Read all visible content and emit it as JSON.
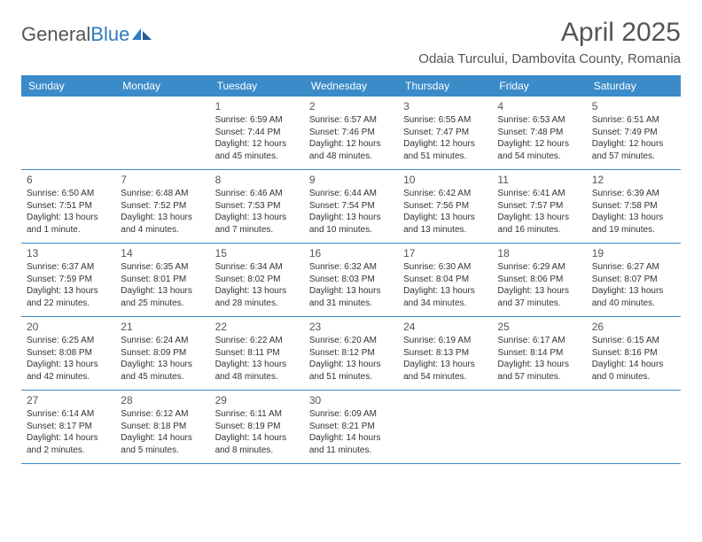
{
  "brand": {
    "part1": "General",
    "part2": "Blue"
  },
  "title": "April 2025",
  "location": "Odaia Turcului, Dambovita County, Romania",
  "colors": {
    "header_bg": "#3b8bc9",
    "header_text": "#ffffff",
    "border": "#3b8bc9",
    "text": "#333333",
    "muted": "#555555",
    "background": "#ffffff",
    "brand_blue": "#2f7bbf"
  },
  "typography": {
    "title_fontsize": 30,
    "location_fontsize": 15,
    "dayheader_fontsize": 12,
    "daynum_fontsize": 12,
    "body_fontsize": 10
  },
  "day_headers": [
    "Sunday",
    "Monday",
    "Tuesday",
    "Wednesday",
    "Thursday",
    "Friday",
    "Saturday"
  ],
  "weeks": [
    [
      null,
      null,
      {
        "n": "1",
        "sr": "Sunrise: 6:59 AM",
        "ss": "Sunset: 7:44 PM",
        "dl": "Daylight: 12 hours and 45 minutes."
      },
      {
        "n": "2",
        "sr": "Sunrise: 6:57 AM",
        "ss": "Sunset: 7:46 PM",
        "dl": "Daylight: 12 hours and 48 minutes."
      },
      {
        "n": "3",
        "sr": "Sunrise: 6:55 AM",
        "ss": "Sunset: 7:47 PM",
        "dl": "Daylight: 12 hours and 51 minutes."
      },
      {
        "n": "4",
        "sr": "Sunrise: 6:53 AM",
        "ss": "Sunset: 7:48 PM",
        "dl": "Daylight: 12 hours and 54 minutes."
      },
      {
        "n": "5",
        "sr": "Sunrise: 6:51 AM",
        "ss": "Sunset: 7:49 PM",
        "dl": "Daylight: 12 hours and 57 minutes."
      }
    ],
    [
      {
        "n": "6",
        "sr": "Sunrise: 6:50 AM",
        "ss": "Sunset: 7:51 PM",
        "dl": "Daylight: 13 hours and 1 minute."
      },
      {
        "n": "7",
        "sr": "Sunrise: 6:48 AM",
        "ss": "Sunset: 7:52 PM",
        "dl": "Daylight: 13 hours and 4 minutes."
      },
      {
        "n": "8",
        "sr": "Sunrise: 6:46 AM",
        "ss": "Sunset: 7:53 PM",
        "dl": "Daylight: 13 hours and 7 minutes."
      },
      {
        "n": "9",
        "sr": "Sunrise: 6:44 AM",
        "ss": "Sunset: 7:54 PM",
        "dl": "Daylight: 13 hours and 10 minutes."
      },
      {
        "n": "10",
        "sr": "Sunrise: 6:42 AM",
        "ss": "Sunset: 7:56 PM",
        "dl": "Daylight: 13 hours and 13 minutes."
      },
      {
        "n": "11",
        "sr": "Sunrise: 6:41 AM",
        "ss": "Sunset: 7:57 PM",
        "dl": "Daylight: 13 hours and 16 minutes."
      },
      {
        "n": "12",
        "sr": "Sunrise: 6:39 AM",
        "ss": "Sunset: 7:58 PM",
        "dl": "Daylight: 13 hours and 19 minutes."
      }
    ],
    [
      {
        "n": "13",
        "sr": "Sunrise: 6:37 AM",
        "ss": "Sunset: 7:59 PM",
        "dl": "Daylight: 13 hours and 22 minutes."
      },
      {
        "n": "14",
        "sr": "Sunrise: 6:35 AM",
        "ss": "Sunset: 8:01 PM",
        "dl": "Daylight: 13 hours and 25 minutes."
      },
      {
        "n": "15",
        "sr": "Sunrise: 6:34 AM",
        "ss": "Sunset: 8:02 PM",
        "dl": "Daylight: 13 hours and 28 minutes."
      },
      {
        "n": "16",
        "sr": "Sunrise: 6:32 AM",
        "ss": "Sunset: 8:03 PM",
        "dl": "Daylight: 13 hours and 31 minutes."
      },
      {
        "n": "17",
        "sr": "Sunrise: 6:30 AM",
        "ss": "Sunset: 8:04 PM",
        "dl": "Daylight: 13 hours and 34 minutes."
      },
      {
        "n": "18",
        "sr": "Sunrise: 6:29 AM",
        "ss": "Sunset: 8:06 PM",
        "dl": "Daylight: 13 hours and 37 minutes."
      },
      {
        "n": "19",
        "sr": "Sunrise: 6:27 AM",
        "ss": "Sunset: 8:07 PM",
        "dl": "Daylight: 13 hours and 40 minutes."
      }
    ],
    [
      {
        "n": "20",
        "sr": "Sunrise: 6:25 AM",
        "ss": "Sunset: 8:08 PM",
        "dl": "Daylight: 13 hours and 42 minutes."
      },
      {
        "n": "21",
        "sr": "Sunrise: 6:24 AM",
        "ss": "Sunset: 8:09 PM",
        "dl": "Daylight: 13 hours and 45 minutes."
      },
      {
        "n": "22",
        "sr": "Sunrise: 6:22 AM",
        "ss": "Sunset: 8:11 PM",
        "dl": "Daylight: 13 hours and 48 minutes."
      },
      {
        "n": "23",
        "sr": "Sunrise: 6:20 AM",
        "ss": "Sunset: 8:12 PM",
        "dl": "Daylight: 13 hours and 51 minutes."
      },
      {
        "n": "24",
        "sr": "Sunrise: 6:19 AM",
        "ss": "Sunset: 8:13 PM",
        "dl": "Daylight: 13 hours and 54 minutes."
      },
      {
        "n": "25",
        "sr": "Sunrise: 6:17 AM",
        "ss": "Sunset: 8:14 PM",
        "dl": "Daylight: 13 hours and 57 minutes."
      },
      {
        "n": "26",
        "sr": "Sunrise: 6:15 AM",
        "ss": "Sunset: 8:16 PM",
        "dl": "Daylight: 14 hours and 0 minutes."
      }
    ],
    [
      {
        "n": "27",
        "sr": "Sunrise: 6:14 AM",
        "ss": "Sunset: 8:17 PM",
        "dl": "Daylight: 14 hours and 2 minutes."
      },
      {
        "n": "28",
        "sr": "Sunrise: 6:12 AM",
        "ss": "Sunset: 8:18 PM",
        "dl": "Daylight: 14 hours and 5 minutes."
      },
      {
        "n": "29",
        "sr": "Sunrise: 6:11 AM",
        "ss": "Sunset: 8:19 PM",
        "dl": "Daylight: 14 hours and 8 minutes."
      },
      {
        "n": "30",
        "sr": "Sunrise: 6:09 AM",
        "ss": "Sunset: 8:21 PM",
        "dl": "Daylight: 14 hours and 11 minutes."
      },
      null,
      null,
      null
    ]
  ]
}
